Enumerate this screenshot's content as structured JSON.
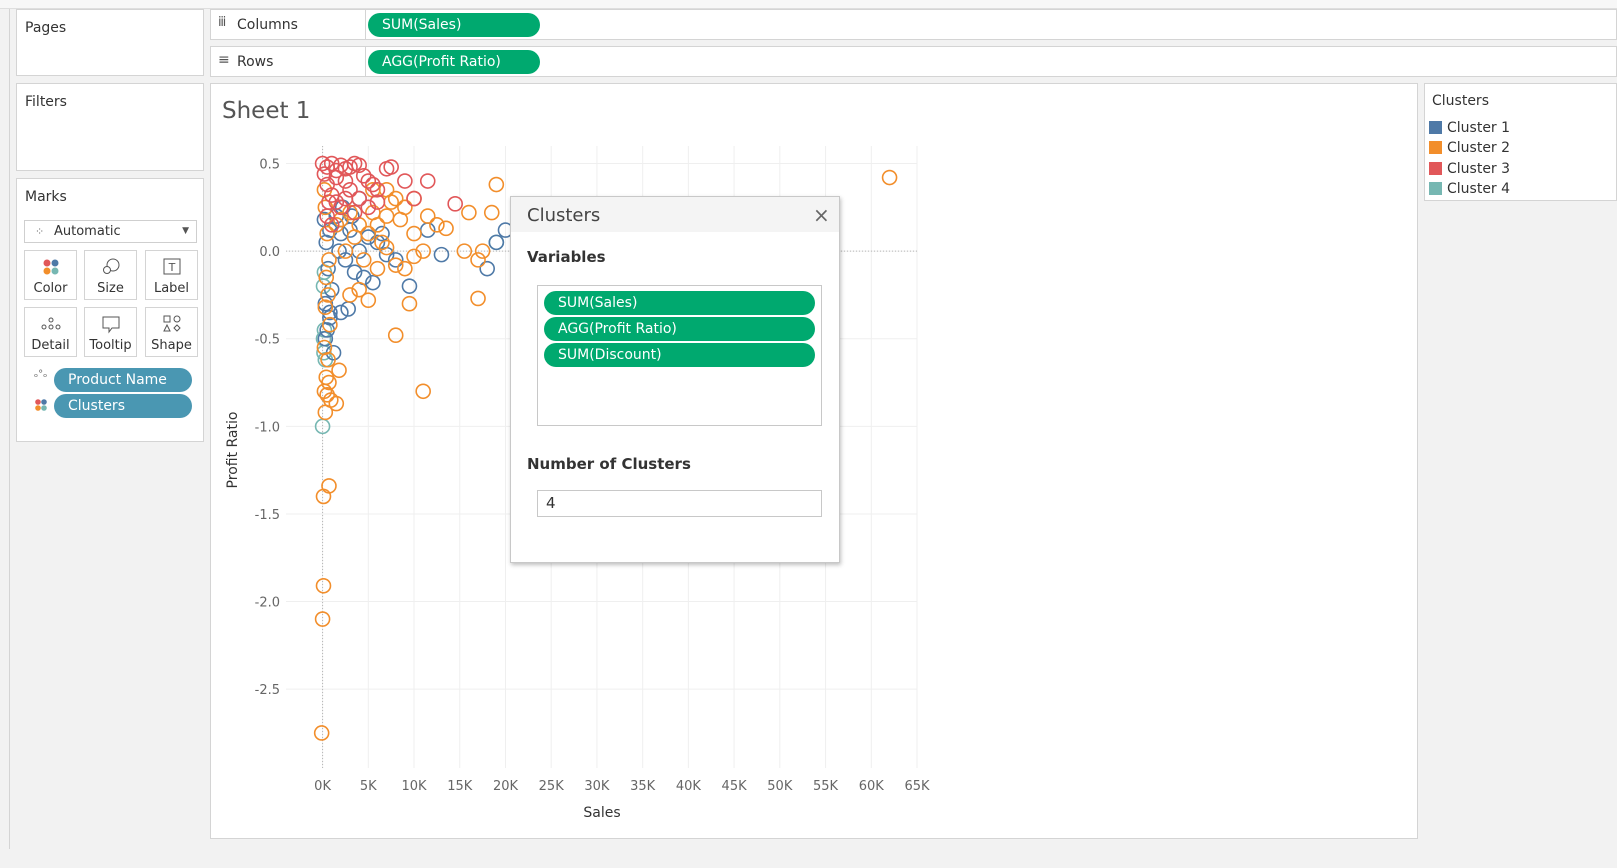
{
  "pages_label": "Pages",
  "filters_label": "Filters",
  "marks": {
    "title": "Marks",
    "type_value": "Automatic",
    "buttons": [
      "Color",
      "Size",
      "Label",
      "Detail",
      "Tooltip",
      "Shape"
    ],
    "pills": [
      "Product Name",
      "Clusters"
    ]
  },
  "shelves": {
    "columns_label": "Columns",
    "columns_pill": "SUM(Sales)",
    "rows_label": "Rows",
    "rows_pill": "AGG(Profit Ratio)"
  },
  "sheet_title": "Sheet 1",
  "legend": {
    "title": "Clusters",
    "items": [
      {
        "label": "Cluster 1",
        "color": "#4e79a7"
      },
      {
        "label": "Cluster 2",
        "color": "#f28e2b"
      },
      {
        "label": "Cluster 3",
        "color": "#e15759"
      },
      {
        "label": "Cluster 4",
        "color": "#76b7b2"
      }
    ]
  },
  "dialog": {
    "title": "Clusters",
    "variables_label": "Variables",
    "variables": [
      "SUM(Sales)",
      "AGG(Profit Ratio)",
      "SUM(Discount)"
    ],
    "num_clusters_label": "Number of Clusters",
    "num_clusters_value": "4"
  },
  "chart_data": {
    "type": "scatter",
    "xlabel": "Sales",
    "ylabel": "Profit Ratio",
    "xlim": [
      -4000,
      65000
    ],
    "ylim": [
      -2.95,
      0.6
    ],
    "x_ticks": [
      0,
      5000,
      10000,
      15000,
      20000,
      25000,
      30000,
      35000,
      40000,
      45000,
      50000,
      55000,
      60000,
      65000
    ],
    "x_tick_labels": [
      "0K",
      "5K",
      "10K",
      "15K",
      "20K",
      "25K",
      "30K",
      "35K",
      "40K",
      "45K",
      "50K",
      "55K",
      "60K",
      "65K"
    ],
    "y_ticks": [
      0.5,
      0.0,
      -0.5,
      -1.0,
      -1.5,
      -2.0,
      -2.5
    ],
    "y_tick_labels": [
      "0.5",
      "0.0",
      "-0.5",
      "-1.0",
      "-1.5",
      "-2.0",
      "-2.5"
    ],
    "grid": true,
    "marker": "open-circle",
    "series": [
      {
        "name": "Cluster 1",
        "color": "#4e79a7",
        "points": [
          [
            200,
            0.18
          ],
          [
            400,
            0.05
          ],
          [
            600,
            -0.1
          ],
          [
            300,
            -0.3
          ],
          [
            500,
            -0.45
          ],
          [
            800,
            -0.38
          ],
          [
            300,
            -0.5
          ],
          [
            1200,
            -0.58
          ],
          [
            1500,
            0.2
          ],
          [
            2000,
            0.1
          ],
          [
            2500,
            -0.05
          ],
          [
            3000,
            0.12
          ],
          [
            3500,
            -0.12
          ],
          [
            4000,
            0.0
          ],
          [
            5000,
            0.08
          ],
          [
            6000,
            0.05
          ],
          [
            7000,
            -0.02
          ],
          [
            8000,
            -0.05
          ],
          [
            9500,
            -0.2
          ],
          [
            11500,
            0.12
          ],
          [
            13000,
            -0.02
          ],
          [
            18000,
            -0.1
          ],
          [
            19000,
            0.05
          ],
          [
            20000,
            0.12
          ],
          [
            1000,
            -0.22
          ],
          [
            2000,
            -0.35
          ],
          [
            2800,
            -0.33
          ],
          [
            4500,
            -0.15
          ],
          [
            5500,
            -0.18
          ],
          [
            800,
            -0.35
          ],
          [
            1800,
            0.0
          ],
          [
            4000,
            0.3
          ],
          [
            6500,
            0.1
          ],
          [
            2200,
            0.25
          ],
          [
            3200,
            0.2
          ],
          [
            800,
            0.12
          ]
        ]
      },
      {
        "name": "Cluster 2",
        "color": "#f28e2b",
        "points": [
          [
            62000,
            0.42
          ],
          [
            19000,
            0.38
          ],
          [
            18500,
            0.22
          ],
          [
            16000,
            0.22
          ],
          [
            15500,
            0.0
          ],
          [
            17000,
            -0.05
          ],
          [
            17500,
            0.0
          ],
          [
            17000,
            -0.27
          ],
          [
            13500,
            0.13
          ],
          [
            12500,
            0.15
          ],
          [
            11500,
            0.2
          ],
          [
            11000,
            0.0
          ],
          [
            10000,
            -0.03
          ],
          [
            9000,
            -0.1
          ],
          [
            8000,
            -0.08
          ],
          [
            7000,
            0.02
          ],
          [
            6500,
            0.05
          ],
          [
            9500,
            -0.3
          ],
          [
            8000,
            -0.48
          ],
          [
            11000,
            -0.8
          ],
          [
            200,
            0.35
          ],
          [
            300,
            0.25
          ],
          [
            500,
            0.1
          ],
          [
            700,
            -0.05
          ],
          [
            400,
            -0.15
          ],
          [
            600,
            -0.25
          ],
          [
            300,
            -0.32
          ],
          [
            800,
            -0.42
          ],
          [
            200,
            -0.55
          ],
          [
            600,
            -0.62
          ],
          [
            1800,
            -0.68
          ],
          [
            400,
            -0.72
          ],
          [
            700,
            -0.75
          ],
          [
            200,
            -0.8
          ],
          [
            500,
            -0.82
          ],
          [
            900,
            -0.85
          ],
          [
            1500,
            -0.87
          ],
          [
            300,
            -0.92
          ],
          [
            100,
            -1.4
          ],
          [
            700,
            -1.34
          ],
          [
            100,
            -1.91
          ],
          [
            0,
            -2.1
          ],
          [
            -100,
            -2.75
          ],
          [
            1500,
            0.15
          ],
          [
            2500,
            0.0
          ],
          [
            3500,
            0.08
          ],
          [
            4500,
            -0.05
          ],
          [
            5500,
            0.22
          ],
          [
            6000,
            -0.1
          ],
          [
            7500,
            0.28
          ],
          [
            8500,
            0.18
          ],
          [
            9000,
            0.25
          ],
          [
            10000,
            0.1
          ],
          [
            3000,
            -0.25
          ],
          [
            5000,
            -0.28
          ],
          [
            4000,
            -0.22
          ],
          [
            6000,
            0.15
          ],
          [
            7000,
            0.2
          ],
          [
            2000,
            0.18
          ],
          [
            3000,
            0.22
          ],
          [
            4000,
            0.15
          ],
          [
            5000,
            0.1
          ],
          [
            8000,
            0.3
          ],
          [
            10000,
            0.3
          ],
          [
            5500,
            0.35
          ],
          [
            7000,
            0.35
          ]
        ]
      },
      {
        "name": "Cluster 3",
        "color": "#e15759",
        "points": [
          [
            0,
            0.5
          ],
          [
            500,
            0.48
          ],
          [
            1000,
            0.5
          ],
          [
            1500,
            0.46
          ],
          [
            2000,
            0.49
          ],
          [
            2500,
            0.47
          ],
          [
            3000,
            0.48
          ],
          [
            3500,
            0.5
          ],
          [
            4000,
            0.49
          ],
          [
            4500,
            0.43
          ],
          [
            5000,
            0.4
          ],
          [
            5500,
            0.38
          ],
          [
            6000,
            0.35
          ],
          [
            7000,
            0.47
          ],
          [
            7500,
            0.48
          ],
          [
            9000,
            0.4
          ],
          [
            11500,
            0.4
          ],
          [
            14500,
            0.27
          ],
          [
            10000,
            0.3
          ],
          [
            500,
            0.38
          ],
          [
            1000,
            0.32
          ],
          [
            1500,
            0.28
          ],
          [
            2000,
            0.25
          ],
          [
            500,
            0.2
          ],
          [
            1000,
            0.15
          ],
          [
            2500,
            0.3
          ],
          [
            3000,
            0.35
          ],
          [
            4000,
            0.3
          ],
          [
            5000,
            0.25
          ],
          [
            6000,
            0.28
          ],
          [
            3500,
            0.22
          ],
          [
            1500,
            0.42
          ],
          [
            2500,
            0.4
          ],
          [
            200,
            0.44
          ],
          [
            700,
            0.28
          ]
        ]
      },
      {
        "name": "Cluster 4",
        "color": "#76b7b2",
        "points": [
          [
            0,
            -1.0
          ],
          [
            100,
            -0.5
          ],
          [
            200,
            -0.45
          ],
          [
            150,
            -0.58
          ],
          [
            300,
            -0.62
          ],
          [
            19000,
            0.05
          ],
          [
            100,
            -0.2
          ],
          [
            200,
            -0.12
          ]
        ]
      }
    ]
  }
}
